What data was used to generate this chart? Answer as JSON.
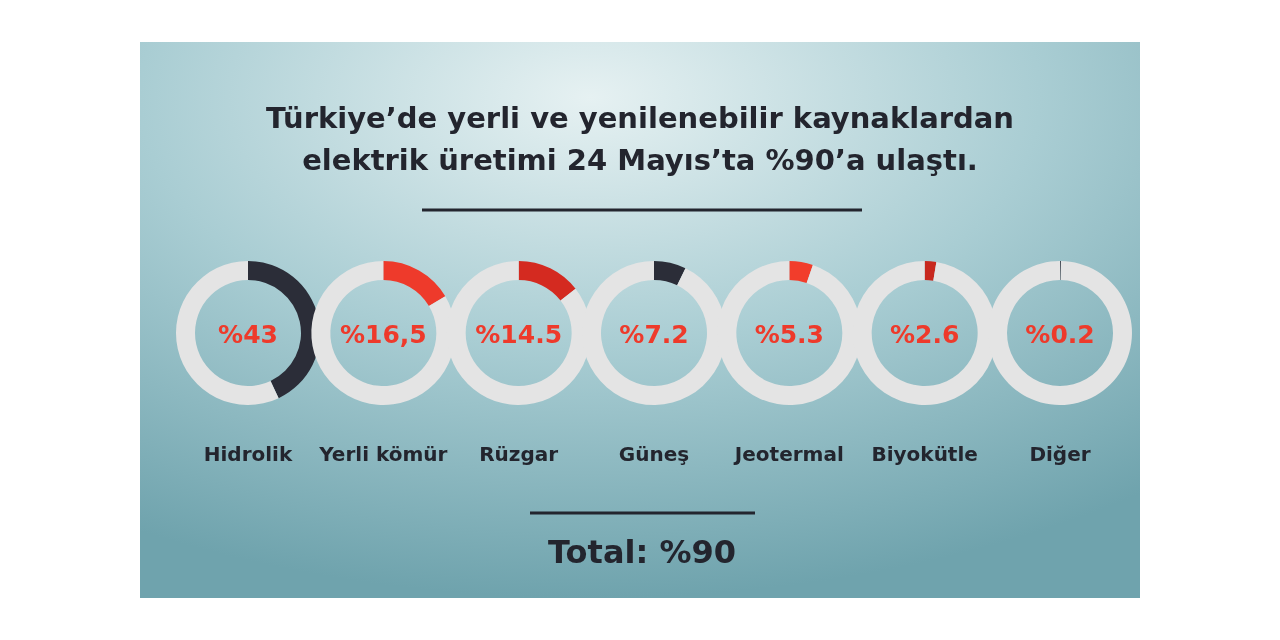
{
  "chart_data": [
    {
      "type": "other",
      "title": "Türkiye’de yerli ve yenilenebilir kaynaklardan elektrik üretimi 24 Mayıs’ta %90’a ulaştı."
    },
    {
      "type": "donut",
      "title": "Hidrolik",
      "annotations": [
        "%43"
      ],
      "values": [
        43,
        57
      ],
      "colors": [
        "#2b2d38",
        "#e4e4e4"
      ]
    },
    {
      "type": "donut",
      "title": "Yerli kömür",
      "annotations": [
        "%16,5"
      ],
      "values": [
        16.5,
        83.5
      ],
      "colors": [
        "#ee3a2b",
        "#e4e4e4"
      ]
    },
    {
      "type": "donut",
      "title": "Rüzgar",
      "annotations": [
        "%14.5"
      ],
      "values": [
        14.5,
        85.5
      ],
      "colors": [
        "#d42a20",
        "#e4e4e4"
      ]
    },
    {
      "type": "donut",
      "title": "Güneş",
      "annotations": [
        "%7.2"
      ],
      "values": [
        7.2,
        92.8
      ],
      "colors": [
        "#2b2d38",
        "#e4e4e4"
      ]
    },
    {
      "type": "donut",
      "title": "Jeotermal",
      "annotations": [
        "%5.3"
      ],
      "values": [
        5.3,
        94.7
      ],
      "colors": [
        "#f23d2b",
        "#e4e4e4"
      ]
    },
    {
      "type": "donut",
      "title": "Biyokütle",
      "annotations": [
        "%2.6"
      ],
      "values": [
        2.6,
        97.4
      ],
      "colors": [
        "#c8281e",
        "#e4e4e4"
      ]
    },
    {
      "type": "donut",
      "title": "Diğer",
      "annotations": [
        "%0.2"
      ],
      "values": [
        0.2,
        99.8
      ],
      "colors": [
        "#2b2d38",
        "#e4e4e4"
      ]
    },
    {
      "type": "other",
      "annotations": [
        "Total: %90"
      ]
    }
  ]
}
